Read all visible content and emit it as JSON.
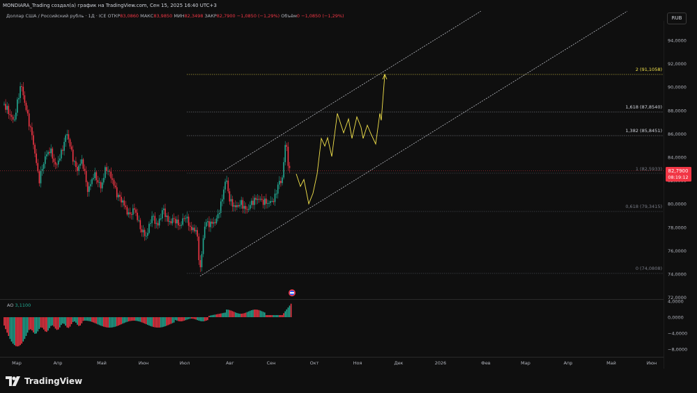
{
  "header": {
    "title": "MONDIARA_Trading создал(а) график на TradingView.com, Сен 15, 2025 16:40 UTC+3"
  },
  "legend": {
    "symbol": "Доллар США / Российский рубль · 1Д · ICE",
    "open_label": "ОТКР",
    "open_value": "83,0860",
    "high_label": "МАКС",
    "high_value": "83,9850",
    "low_label": "МИН",
    "low_value": "82,3498",
    "close_label": "ЗАКР",
    "close_value": "82,7900",
    "change": "−1,0850 (−1,29%)",
    "volume_label": "Объём",
    "volume_value": "0",
    "volume_change": "−1,0850 (−1,29%)"
  },
  "currency_button": "RUB",
  "price_axis": [
    "94,0000",
    "92,0000",
    "90,0000",
    "88,0000",
    "86,0000",
    "84,0000",
    "82,0000",
    "80,0000",
    "78,0000",
    "76,0000",
    "74,0000",
    "72,0000"
  ],
  "price_tag": {
    "value": "82,7900",
    "timer": "08:19:12"
  },
  "fib_levels": [
    {
      "label": "2 (91,1058)",
      "color": "#f7e64c"
    },
    {
      "label": "1,618 (87,8540)",
      "color": "#d1d4dc"
    },
    {
      "label": "1,382 (85,8451)",
      "color": "#d1d4dc"
    },
    {
      "label": "1 (82,5933)",
      "color": "#787b86"
    },
    {
      "label": "0,618 (79,3415)",
      "color": "#787b86"
    },
    {
      "label": "0 (74,0808)",
      "color": "#787b86"
    }
  ],
  "oscillator": {
    "name": "AO",
    "value": "3,1100",
    "axis": [
      "4,0000",
      "0,0000",
      "−4,0000",
      "−8,0000"
    ]
  },
  "time_axis": [
    "Мар",
    "Апр",
    "Май",
    "Июн",
    "Июл",
    "Авг",
    "Сен",
    "Окт",
    "Ноя",
    "Дек",
    "2026",
    "Фев",
    "Мар",
    "Апр",
    "Май",
    "Июн"
  ],
  "brand": "TradingView",
  "colors": {
    "up": "#22ab94",
    "down": "#f23645",
    "projection": "#f7e64c",
    "background": "#0f0f0f"
  }
}
